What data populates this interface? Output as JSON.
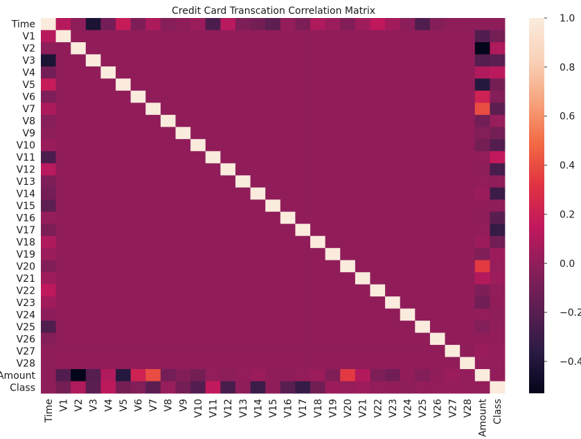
{
  "chart_data": {
    "type": "heatmap",
    "title": "Credit Card Transcation Correlation Matrix",
    "labels": [
      "Time",
      "V1",
      "V2",
      "V3",
      "V4",
      "V5",
      "V6",
      "V7",
      "V8",
      "V9",
      "V10",
      "V11",
      "V12",
      "V13",
      "V14",
      "V15",
      "V16",
      "V17",
      "V18",
      "V19",
      "V20",
      "V21",
      "V22",
      "V23",
      "V24",
      "V25",
      "V26",
      "V27",
      "V28",
      "Amount",
      "Class"
    ],
    "time_col": [
      1.0,
      0.117,
      -0.011,
      -0.42,
      -0.105,
      0.173,
      -0.063,
      0.085,
      -0.037,
      -0.009,
      0.031,
      -0.248,
      0.124,
      -0.066,
      -0.099,
      -0.183,
      0.012,
      -0.073,
      0.09,
      0.029,
      -0.051,
      0.045,
      0.144,
      0.051,
      -0.016,
      -0.233,
      -0.041,
      -0.005,
      -0.009,
      -0.011,
      -0.012
    ],
    "amount_col": [
      -0.011,
      -0.228,
      -0.531,
      -0.211,
      0.099,
      -0.386,
      0.216,
      0.397,
      -0.103,
      -0.044,
      -0.101,
      0.0001,
      -0.009,
      0.005,
      0.034,
      -0.003,
      -0.004,
      0.007,
      0.036,
      -0.056,
      0.339,
      0.106,
      -0.065,
      -0.113,
      0.005,
      -0.048,
      -0.003,
      0.029,
      0.01,
      1.0,
      0.006
    ],
    "class_col": [
      -0.012,
      -0.101,
      0.091,
      -0.193,
      0.133,
      -0.095,
      -0.044,
      -0.187,
      0.02,
      -0.098,
      -0.217,
      0.155,
      -0.261,
      -0.005,
      -0.303,
      -0.004,
      -0.197,
      -0.326,
      -0.111,
      0.035,
      0.02,
      0.04,
      0.001,
      -0.003,
      -0.007,
      0.003,
      0.004,
      0.018,
      0.01,
      0.006,
      1.0
    ],
    "colorbar": {
      "min": -0.53,
      "max": 1.0,
      "ticks": [
        -0.4,
        -0.2,
        0.0,
        0.2,
        0.4,
        0.6,
        0.8,
        1.0
      ],
      "tick_labels": [
        "−0.4",
        "−0.2",
        "0.0",
        "0.2",
        "0.4",
        "0.6",
        "0.8",
        "1.0"
      ],
      "colormap": "rocket",
      "colormap_stops": [
        "#03051a",
        "#2b1b44",
        "#5b1e51",
        "#8a1e5a",
        "#c1185d",
        "#e13342",
        "#f26a43",
        "#f6a47e",
        "#f9d2b9",
        "#faebdd"
      ]
    },
    "grid": false,
    "legend": "colorbar-right"
  }
}
